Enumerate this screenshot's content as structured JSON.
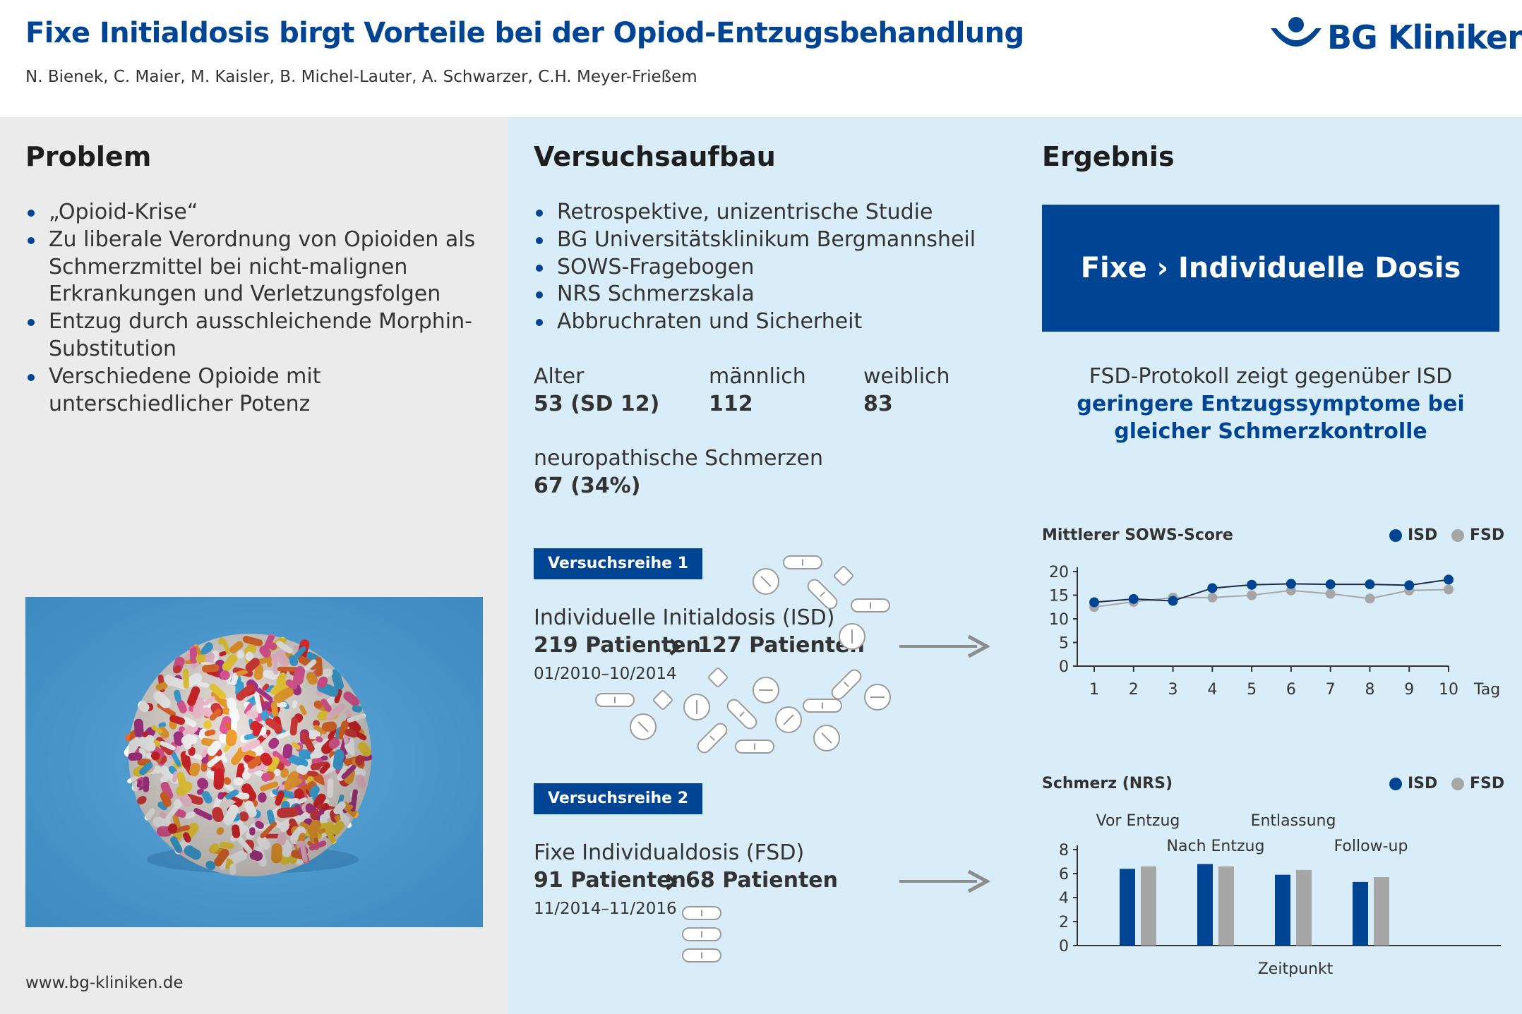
{
  "header": {
    "title": "Fixe Initialdosis birgt Vorteile bei der Opiod-Entzugsbehandlung",
    "authors": "N. Bienek, C. Maier, M. Kaisler, B. Michel-Lauter, A. Schwarzer, C.H. Meyer-Frießem",
    "logo_text": "BG Kliniken"
  },
  "colors": {
    "brand_blue": "#004494",
    "isd": "#004494",
    "fsd": "#a6a6a6",
    "panel_grey": "#ebebeb",
    "panel_blue": "#d9edf9"
  },
  "problem": {
    "heading": "Problem",
    "bullets": [
      "„Opioid-Krise“",
      "Zu liberale Verordnung von Opioiden als Schmerzmittel bei nicht-malignen Erkrankungen und Verletzungsfolgen",
      "Entzug durch ausschleichende Morphin-Substitution",
      "Verschiedene Opioide mit unterschiedlicher Potenz"
    ],
    "footer_url": "www.bg-kliniken.de"
  },
  "setup": {
    "heading": "Versuchsaufbau",
    "bullets": [
      "Retrospektive, unizentrische Studie",
      "BG Universitätsklinikum Bergmannsheil",
      "SOWS-Fragebogen",
      "NRS Schmerzskala",
      "Abbruchraten und Sicherheit"
    ],
    "stats": {
      "age_label": "Alter",
      "age_value": "53 (SD 12)",
      "male_label": "männlich",
      "male_value": "112",
      "female_label": "weiblich",
      "female_value": "83",
      "neuro_label": "neuropathische Schmerzen",
      "neuro_value": "67 (34%)"
    },
    "series1": {
      "badge": "Versuchsreihe 1",
      "name": "Individuelle Initialdosis (ISD)",
      "patients_from": "219 Patienten",
      "patients_to": "127 Patienten",
      "period": "01/2010–10/2014"
    },
    "series2": {
      "badge": "Versuchsreihe 2",
      "name": "Fixe Individualdosis (FSD)",
      "patients_from": "91 Patienten",
      "patients_to": "68 Patienten",
      "period": "11/2014–11/2016"
    }
  },
  "result": {
    "heading": "Ergebnis",
    "box_text": "Fixe › Individuelle Dosis",
    "text_plain": "FSD-Protokoll zeigt gegenüber ISD",
    "text_emph": "geringere Entzugssymptome bei gleicher Schmerzkontrolle"
  },
  "chart_data": [
    {
      "type": "line",
      "title": "Mittlerer SOWS-Score",
      "xlabel": "Tag",
      "ylabel": "",
      "x": [
        1,
        2,
        3,
        4,
        5,
        6,
        7,
        8,
        9,
        10
      ],
      "ylim": [
        0,
        20
      ],
      "yticks": [
        0,
        5,
        10,
        15,
        20
      ],
      "legend_position": "top-right",
      "series": [
        {
          "name": "ISD",
          "color": "#004494",
          "values": [
            13.5,
            14.2,
            13.8,
            16.5,
            17.2,
            17.4,
            17.3,
            17.3,
            17.1,
            18.3
          ]
        },
        {
          "name": "FSD",
          "color": "#a6a6a6",
          "values": [
            12.5,
            13.6,
            14.5,
            14.5,
            15.0,
            16.0,
            15.3,
            14.3,
            16.0,
            16.2
          ]
        }
      ]
    },
    {
      "type": "bar",
      "title": "Schmerz (NRS)",
      "xlabel": "Zeitpunkt",
      "ylabel": "",
      "categories": [
        "Vor Entzug",
        "Nach Entzug",
        "Entlassung",
        "Follow-up"
      ],
      "ylim": [
        0,
        8
      ],
      "yticks": [
        0,
        2,
        4,
        6,
        8
      ],
      "legend_position": "top-right",
      "series": [
        {
          "name": "ISD",
          "color": "#004494",
          "values": [
            6.4,
            6.8,
            5.9,
            5.3
          ]
        },
        {
          "name": "FSD",
          "color": "#a6a6a6",
          "values": [
            6.6,
            6.6,
            6.3,
            5.7
          ]
        }
      ]
    }
  ]
}
